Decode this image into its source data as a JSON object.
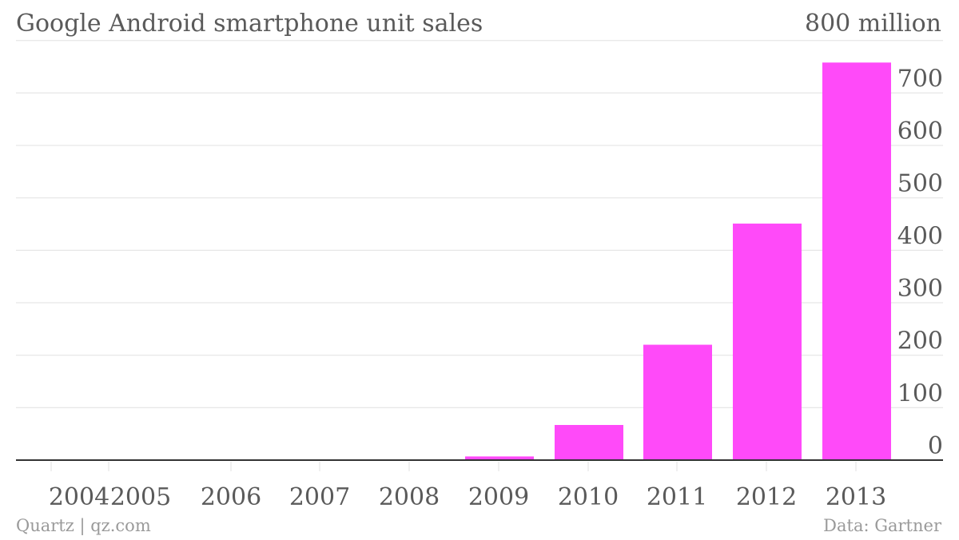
{
  "header": {
    "title": "Google Android smartphone unit sales",
    "unit_label": "800 million"
  },
  "footer": {
    "source_left": "Quartz | qz.com",
    "source_right": "Data: Gartner"
  },
  "colors": {
    "bar": "#ff4af9",
    "grid": "#e6e6e6",
    "axis": "#333333",
    "text": "#5a5a5a"
  },
  "chart_data": {
    "type": "bar",
    "categories": [
      "2004",
      "2005",
      "2006",
      "2007",
      "2008",
      "2009",
      "2010",
      "2011",
      "2012",
      "2013"
    ],
    "values": [
      0,
      0,
      0,
      0,
      1,
      7,
      67,
      220,
      451,
      758
    ],
    "ylim": [
      0,
      800
    ],
    "yticks": [
      0,
      100,
      200,
      300,
      400,
      500,
      600,
      700
    ],
    "ytick_labels": [
      "0",
      "100",
      "200",
      "300",
      "400",
      "500",
      "600",
      "700"
    ],
    "y_axis_position": "right",
    "grid": true,
    "legend": "none",
    "title": "Google Android smartphone unit sales",
    "xlabel": "",
    "ylabel": "800 million"
  }
}
